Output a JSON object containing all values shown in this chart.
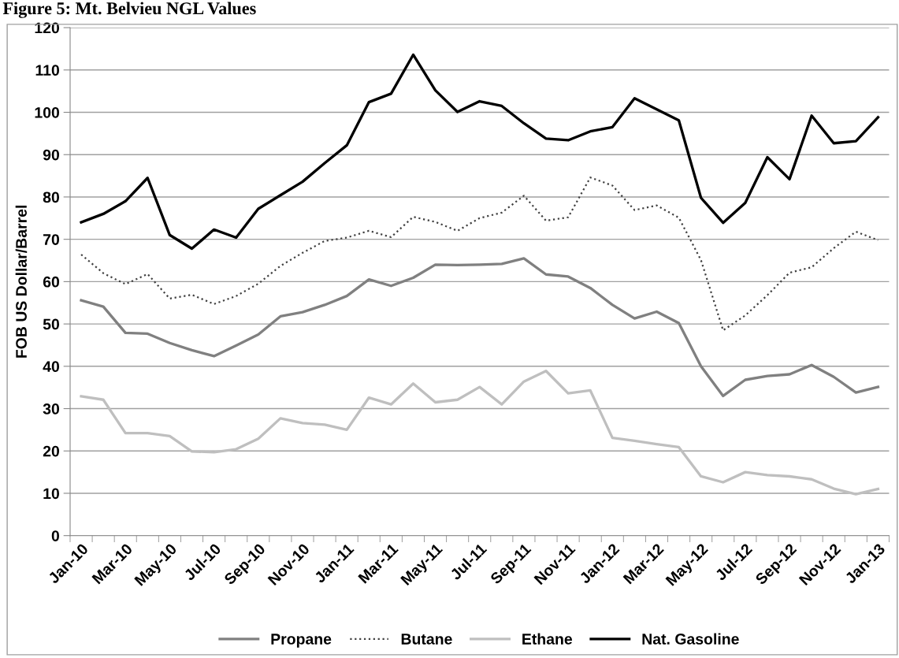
{
  "chart_data": {
    "type": "line",
    "title": "Figure 5: Mt. Belvieu NGL Values",
    "ylabel": "FOB US Dollar/Barrel",
    "categories": [
      "Jan-10",
      null,
      "Mar-10",
      null,
      "May-10",
      null,
      "Jul-10",
      null,
      "Sep-10",
      null,
      "Nov-10",
      null,
      "Jan-11",
      null,
      "Mar-11",
      null,
      "May-11",
      null,
      "Jul-11",
      null,
      "Sep-11",
      null,
      "Nov-11",
      null,
      "Jan-12",
      null,
      "Mar-12",
      null,
      "May-12",
      null,
      "Jul-12",
      null,
      "Sep-12",
      null,
      "Nov-12",
      null,
      "Jan-13"
    ],
    "series": [
      {
        "name": "Propane",
        "color": "#808080",
        "line_style": "solid",
        "values": [
          55.6,
          54.1,
          47.9,
          47.7,
          45.5,
          43.8,
          42.4,
          44.9,
          47.5,
          51.8,
          52.8,
          54.5,
          56.6,
          60.5,
          59,
          60.9,
          64,
          63.9,
          64,
          64.2,
          65.5,
          61.7,
          61.2,
          58.5,
          54.5,
          51.3,
          52.9,
          50.2,
          40,
          33,
          36.8,
          37.7,
          38.1,
          40.3,
          37.5,
          33.8,
          35.1
        ]
      },
      {
        "name": "Butane",
        "color": "#404040",
        "line_style": "dotted",
        "values": [
          66.4,
          62,
          59.4,
          61.8,
          56,
          56.9,
          54.7,
          56.6,
          59.5,
          63.7,
          66.8,
          69.6,
          70.4,
          72,
          70.5,
          75.3,
          74.1,
          72,
          75,
          76.3,
          80.3,
          74.4,
          75.2,
          84.6,
          82.7,
          76.9,
          78,
          75.1,
          65.1,
          48.5,
          52,
          56.8,
          62.1,
          63.4,
          67.9,
          71.8,
          69.8
        ]
      },
      {
        "name": "Ethane",
        "color": "#bfbfbf",
        "line_style": "solid",
        "values": [
          32.9,
          32.1,
          24.2,
          24.2,
          23.5,
          19.9,
          19.7,
          20.4,
          22.9,
          27.7,
          26.6,
          26.2,
          25,
          32.6,
          31,
          35.9,
          31.5,
          32.1,
          35.1,
          31,
          36.4,
          38.9,
          33.6,
          34.3,
          23.1,
          22.4,
          21.6,
          20.9,
          14,
          12.6,
          15,
          14.3,
          14,
          13.3,
          11.1,
          9.8,
          11
        ]
      },
      {
        "name": "Nat. Gasoline",
        "color": "#000000",
        "line_style": "solid",
        "values": [
          74,
          76,
          79,
          84.5,
          71,
          67.8,
          72.3,
          70.4,
          77.2,
          80.4,
          83.6,
          88,
          92.2,
          102.4,
          104.4,
          113.6,
          105.2,
          100.1,
          102.6,
          101.5,
          97.4,
          93.8,
          93.4,
          95.5,
          96.5,
          103.3,
          100.7,
          98.1,
          79.8,
          73.9,
          78.6,
          89.4,
          84.2,
          99.2,
          92.7,
          93.2,
          98.8
        ]
      }
    ],
    "ylim": [
      0,
      120
    ],
    "yticks": [
      0,
      10,
      20,
      30,
      40,
      50,
      60,
      70,
      80,
      90,
      100,
      110,
      120
    ],
    "grid": "y",
    "legend": "bottom",
    "marker": "none"
  }
}
